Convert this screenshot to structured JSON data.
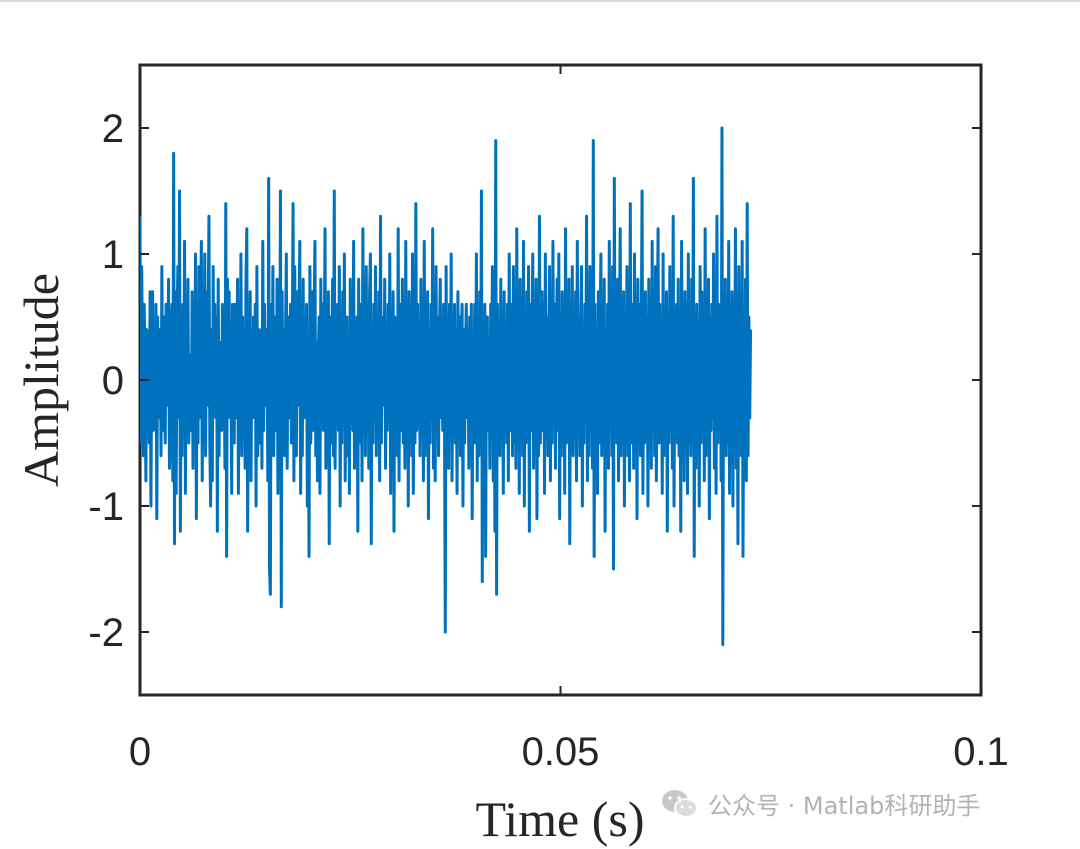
{
  "chart_data": {
    "type": "line",
    "xlabel": "Time (s)",
    "ylabel": "Amplitude",
    "xlim": [
      0,
      0.1
    ],
    "ylim": [
      -2.5,
      2.5
    ],
    "x_ticks": [
      0,
      0.05,
      0.1
    ],
    "x_tick_labels": [
      "0",
      "0.05",
      "0.1"
    ],
    "y_ticks": [
      -2,
      -1,
      0,
      1,
      2
    ],
    "y_tick_labels": [
      "-2",
      "-1",
      "0",
      "1",
      "2"
    ],
    "grid": false,
    "series": [
      {
        "color": "#0072BD",
        "x_start": 0,
        "x_step": 0.0001,
        "values": [
          1.3,
          -0.5,
          0.9,
          0.2,
          -0.6,
          0.6,
          0.1,
          -0.8,
          0.4,
          -0.3,
          0.0,
          -0.5,
          0.7,
          -1.0,
          0.3,
          0.7,
          -0.4,
          0.2,
          -0.2,
          0.6,
          -1.1,
          0.5,
          -0.3,
          0.1,
          0.4,
          -0.6,
          0.9,
          -0.4,
          0.2,
          0.5,
          -0.5,
          0.6,
          -0.2,
          0.1,
          0.8,
          -0.7,
          -0.4,
          0.3,
          0.6,
          -0.8,
          1.8,
          -1.3,
          0.7,
          -0.9,
          0.4,
          0.9,
          -0.3,
          1.5,
          -1.2,
          0.2,
          -0.6,
          0.6,
          -0.2,
          1.1,
          -0.9,
          0.4,
          -0.3,
          0.8,
          -0.5,
          0.2,
          0.1,
          -0.4,
          0.7,
          -0.7,
          0.5,
          -0.1,
          1.0,
          -1.1,
          0.3,
          -0.5,
          0.9,
          -0.3,
          0.6,
          1.1,
          -0.8,
          0.2,
          -0.4,
          1.0,
          -0.6,
          0.7,
          -0.2,
          0.5,
          1.3,
          -0.5,
          -1.0,
          0.4,
          -0.8,
          0.9,
          -0.2,
          0.6,
          -0.3,
          0.5,
          -1.2,
          0.8,
          -0.6,
          0.3,
          0.1,
          -0.4,
          0.6,
          -0.2,
          0.1,
          -0.7,
          1.4,
          -1.4,
          0.8,
          -0.3,
          0.7,
          -0.2,
          0.4,
          -0.9,
          0.6,
          0.2,
          -0.5,
          0.6,
          -0.3,
          0.1,
          0.8,
          -0.9,
          0.2,
          -0.4,
          1.0,
          -0.6,
          0.5,
          -0.1,
          0.3,
          -0.7,
          0.8,
          1.2,
          -1.2,
          0.4,
          -0.5,
          0.7,
          -0.8,
          0.3,
          -0.3,
          0.5,
          -0.2,
          0.6,
          -1.0,
          0.9,
          -0.6,
          0.2,
          0.4,
          -0.5,
          0.3,
          -0.7,
          1.1,
          -0.4,
          0.6,
          -0.2,
          0.0,
          0.4,
          -0.8,
          1.6,
          -1.5,
          -1.7,
          0.6,
          -0.3,
          0.9,
          -0.6,
          0.3,
          0.5,
          -0.4,
          0.8,
          -0.9,
          0.2,
          -0.5,
          1.5,
          -1.8,
          0.7,
          -0.2,
          0.4,
          -0.6,
          0.3,
          1.0,
          -0.7,
          0.5,
          0.1,
          -0.3,
          0.6,
          -0.5,
          0.2,
          1.4,
          -0.8,
          0.9,
          -0.4,
          -0.6,
          0.7,
          -0.2,
          0.5,
          1.1,
          -0.9,
          0.3,
          -0.6,
          0.8,
          -0.3,
          0.4,
          -0.1,
          0.6,
          -1.0,
          0.2,
          -1.4,
          0.9,
          -0.5,
          0.1,
          0.7,
          -0.4,
          0.5,
          1.1,
          -0.6,
          0.3,
          -0.8,
          0.2,
          0.5,
          -0.9,
          0.8,
          -0.2,
          0.6,
          -0.4,
          0.1,
          1.2,
          -0.7,
          0.4,
          -0.3,
          0.7,
          -1.3,
          0.5,
          -0.5,
          0.2,
          0.8,
          -0.6,
          1.5,
          -0.7,
          0.3,
          -0.2,
          0.6,
          -0.4,
          0.9,
          -1.0,
          0.4,
          -0.5,
          0.7,
          -0.3,
          1.0,
          -0.8,
          0.2,
          0.5,
          -0.6,
          0.3,
          -0.9,
          0.8,
          -0.2,
          0.6,
          -0.4,
          1.1,
          -0.7,
          0.4,
          -0.3,
          0.5,
          -1.2,
          0.8,
          -0.5,
          0.2,
          0.6,
          -0.8,
          1.2,
          -0.4,
          0.3,
          -0.6,
          0.9,
          -0.2,
          0.5,
          -0.7,
          0.7,
          1.0,
          -1.3,
          0.4,
          -0.5,
          0.6,
          -0.3,
          0.9,
          -0.6,
          0.2,
          -0.4,
          0.7,
          -0.8,
          1.3,
          -0.5,
          0.3,
          0.5,
          -0.2,
          0.8,
          -0.7,
          0.4,
          -0.4,
          0.6,
          -0.3,
          1.0,
          -0.9,
          0.2,
          -0.5,
          0.7,
          -1.2,
          0.5,
          -0.2,
          0.4,
          -0.6,
          1.2,
          -0.8,
          0.3,
          0.6,
          -0.4,
          0.8,
          -0.5,
          0.2,
          -0.7,
          1.1,
          -0.3,
          0.5,
          -1.0,
          0.7,
          -0.2,
          0.4,
          -0.6,
          1.0,
          -0.9,
          0.3,
          -0.5,
          1.4,
          -0.4,
          0.6,
          -0.3,
          0.2,
          -0.6,
          0.8,
          -0.4,
          0.5,
          -0.8,
          1.1,
          -0.6,
          0.3,
          -0.2,
          0.7,
          -1.1,
          0.4,
          -0.5,
          0.6,
          -0.3,
          1.2,
          -0.7,
          0.2,
          -0.8,
          0.9,
          -0.4,
          0.5,
          -0.6,
          0.3,
          0.8,
          -0.3,
          0.1,
          -0.4,
          0.6,
          -0.2,
          -2.0,
          0.9,
          -0.5,
          0.3,
          -0.7,
          0.6,
          -0.4,
          1.0,
          -0.8,
          0.2,
          -0.3,
          0.6,
          -0.5,
          0.4,
          -0.9,
          0.7,
          -0.2,
          0.5,
          -0.6,
          0.3,
          0.6,
          -1.0,
          0.4,
          -0.5,
          0.2,
          0.6,
          -0.3,
          0.4,
          -0.7,
          0.5,
          -0.4,
          0.6,
          -1.1,
          0.3,
          -0.2,
          0.6,
          -0.5,
          1.0,
          -0.8,
          0.3,
          -0.6,
          0.7,
          -0.3,
          1.5,
          -1.6,
          0.4,
          -0.5,
          0.6,
          -1.4,
          0.3,
          0.5,
          -0.4,
          0.2,
          -0.7,
          0.6,
          -0.3,
          0.9,
          -0.8,
          0.4,
          -1.2,
          1.9,
          -1.7,
          0.6,
          -0.4,
          0.3,
          -0.6,
          0.8,
          -0.2,
          0.5,
          -0.9,
          0.7,
          -0.3,
          0.4,
          -0.5,
          0.6,
          -0.8,
          1.0,
          -0.4,
          0.2,
          0.6,
          -0.6,
          0.9,
          -0.5,
          0.3,
          -0.7,
          1.2,
          -0.4,
          0.5,
          -0.9,
          0.8,
          -0.2,
          0.4,
          -0.6,
          1.1,
          -1.0,
          0.3,
          -0.5,
          0.7,
          -0.3,
          0.9,
          -1.2,
          0.6,
          -0.4,
          0.2,
          1.0,
          -0.7,
          0.5,
          -0.3,
          0.8,
          -1.1,
          0.4,
          -0.6,
          1.3,
          -0.5,
          0.2,
          0.7,
          -0.4,
          0.6,
          -0.9,
          1.0,
          -0.3,
          0.5,
          -0.6,
          0.2,
          0.9,
          -0.8,
          0.4,
          -0.5,
          1.1,
          -0.3,
          0.6,
          -0.7,
          0.3,
          0.8,
          -0.4,
          1.0,
          -1.1,
          0.5,
          -0.6,
          0.7,
          -0.2,
          0.4,
          -0.9,
          1.2,
          -0.5,
          0.3,
          -0.4,
          0.8,
          -1.3,
          0.6,
          -0.3,
          0.9,
          -0.6,
          0.4,
          -0.2,
          0.7,
          -0.8,
          1.1,
          -0.4,
          0.3,
          -0.6,
          0.5,
          0.9,
          -1.0,
          0.4,
          -0.5,
          0.6,
          -0.3,
          1.3,
          -0.8,
          0.2,
          -0.6,
          0.9,
          -0.4,
          0.5,
          -0.7,
          1.9,
          -1.4,
          0.6,
          -0.3,
          0.4,
          -0.9,
          0.7,
          -0.5,
          0.3,
          1.0,
          -0.6,
          0.5,
          -0.2,
          0.8,
          -1.2,
          0.4,
          -0.4,
          0.6,
          -0.7,
          1.1,
          -0.3,
          0.5,
          -0.6,
          0.9,
          -1.5,
          1.6,
          -0.4,
          0.3,
          -0.5,
          0.8,
          -0.8,
          0.4,
          1.2,
          -0.6,
          0.3,
          -0.4,
          0.7,
          -1.0,
          0.5,
          -0.3,
          0.9,
          -0.6,
          0.4,
          -0.8,
          1.4,
          -0.5,
          0.2,
          0.6,
          -0.7,
          1.0,
          -0.4,
          0.5,
          -1.1,
          0.8,
          -0.3,
          0.6,
          -0.6,
          0.3,
          1.5,
          -0.9,
          0.4,
          -0.5,
          0.7,
          -0.2,
          0.5,
          -1.0,
          0.8,
          -0.4,
          0.6,
          -0.7,
          1.1,
          -0.3,
          0.4,
          -0.6,
          0.9,
          -0.8,
          0.3,
          1.2,
          -0.5,
          0.6,
          -0.4,
          0.2,
          -0.9,
          1.0,
          -0.6,
          0.4,
          -0.3,
          0.7,
          -1.2,
          0.5,
          -0.5,
          0.9,
          -0.4,
          0.6,
          -0.7,
          1.3,
          -1.0,
          0.4,
          -0.3,
          0.6,
          -0.5,
          0.8,
          -0.6,
          0.3,
          -1.2,
          1.1,
          -0.4,
          0.5,
          -0.8,
          0.7,
          -0.3,
          0.6,
          -0.9,
          1.0,
          -0.5,
          0.3,
          -0.6,
          0.8,
          -0.4,
          1.6,
          -1.4,
          0.5,
          -0.7,
          0.6,
          -0.3,
          0.4,
          -1.0,
          0.9,
          -0.5,
          0.7,
          -0.4,
          0.6,
          -0.8,
          1.2,
          -0.6,
          0.3,
          -0.5,
          0.8,
          -1.1,
          0.5,
          -0.4,
          0.6,
          -0.3,
          1.0,
          -0.7,
          0.4,
          -0.9,
          1.3,
          -0.5,
          0.6,
          -0.2,
          0.5,
          -0.8,
          2.0,
          -2.1,
          0.6,
          -0.4,
          0.8,
          -0.6,
          0.3,
          -0.5,
          1.1,
          -0.9,
          0.4,
          -0.3,
          0.7,
          -1.0,
          0.5,
          -0.5,
          1.2,
          -0.7,
          0.4,
          -1.3,
          0.9,
          -0.4,
          0.6,
          -0.6,
          1.1,
          -1.4,
          0.3,
          -0.5,
          0.8,
          -0.8,
          1.4,
          -0.6,
          0.5,
          -0.3,
          0.4
        ]
      }
    ]
  },
  "watermark": {
    "text": "公众号 · Matlab科研助手",
    "icon": "wechat-icon"
  }
}
